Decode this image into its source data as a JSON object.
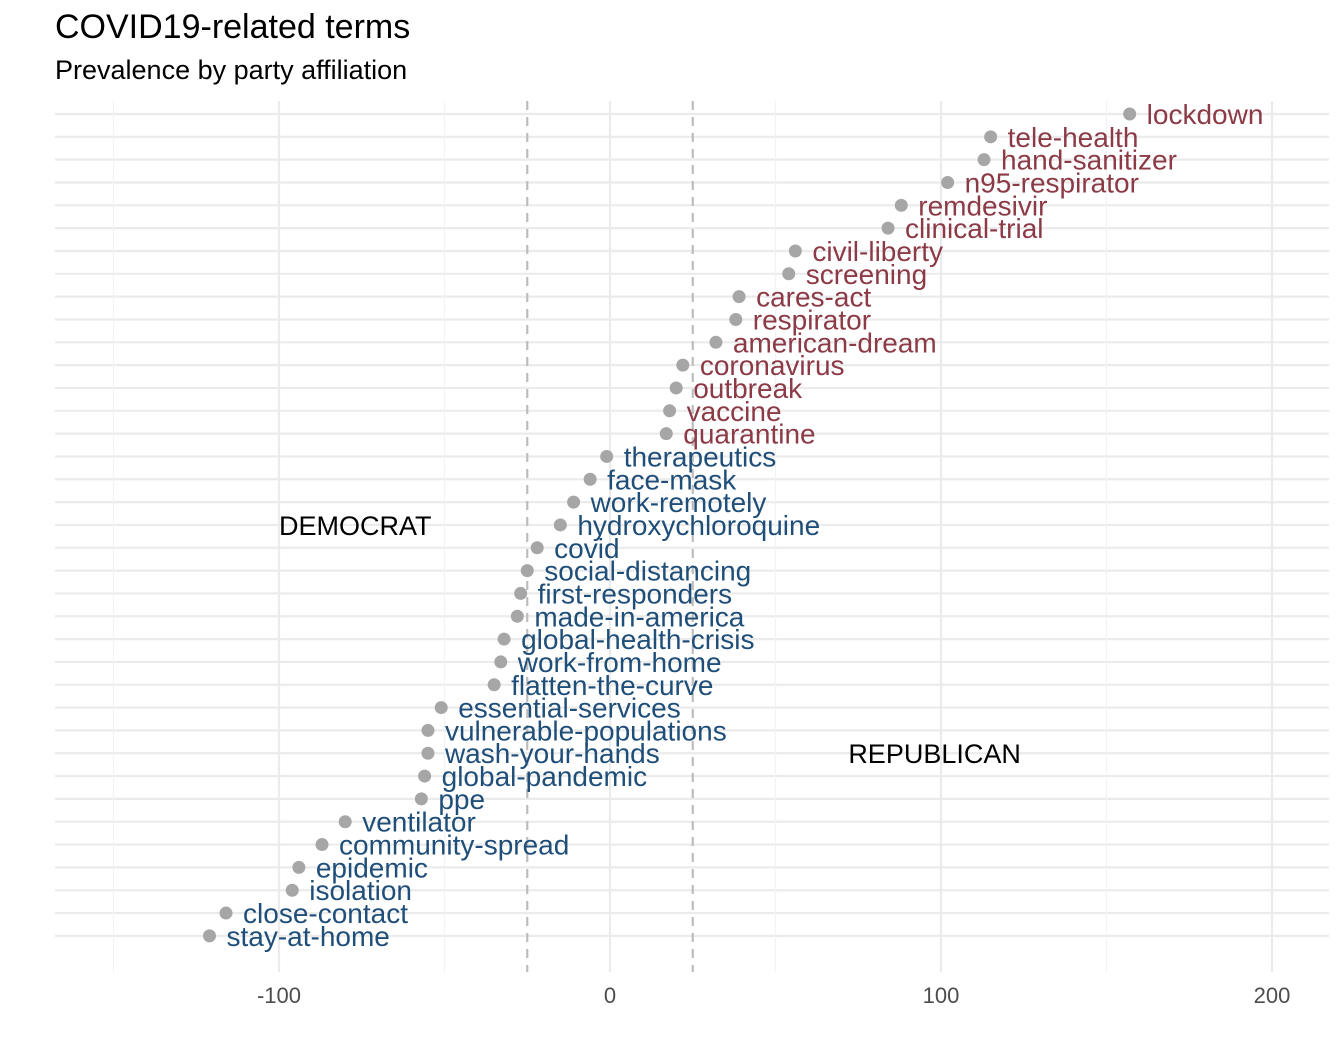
{
  "title": "COVID19-related terms",
  "subtitle": "Prevalence by party affiliation",
  "colors": {
    "republican": "#8B3A46",
    "democrat": "#1F4E79",
    "point": "#A6A6A6"
  },
  "chart_data": {
    "type": "scatter",
    "title": "COVID19-related terms",
    "subtitle": "Prevalence by party affiliation",
    "xlabel": "",
    "ylabel": "",
    "xlim": [
      -168,
      218
    ],
    "x_ticks": [
      -100,
      0,
      100,
      200
    ],
    "x_tick_labels": [
      "-100",
      "0",
      "100",
      "200"
    ],
    "reference_lines": [
      -25,
      25
    ],
    "grid": true,
    "annotations": [
      {
        "text": "DEMOCRAT",
        "x": -100,
        "term": "hydroxychloroquine"
      },
      {
        "text": "REPUBLICAN",
        "x": 72,
        "term": "wash-your-hands"
      }
    ],
    "points": [
      {
        "term": "lockdown",
        "value": 157,
        "party": "republican"
      },
      {
        "term": "tele-health",
        "value": 115,
        "party": "republican"
      },
      {
        "term": "hand-sanitizer",
        "value": 113,
        "party": "republican"
      },
      {
        "term": "n95-respirator",
        "value": 102,
        "party": "republican"
      },
      {
        "term": "remdesivir",
        "value": 88,
        "party": "republican"
      },
      {
        "term": "clinical-trial",
        "value": 84,
        "party": "republican"
      },
      {
        "term": "civil-liberty",
        "value": 56,
        "party": "republican"
      },
      {
        "term": "screening",
        "value": 54,
        "party": "republican"
      },
      {
        "term": "cares-act",
        "value": 39,
        "party": "republican"
      },
      {
        "term": "respirator",
        "value": 38,
        "party": "republican"
      },
      {
        "term": "american-dream",
        "value": 32,
        "party": "republican"
      },
      {
        "term": "coronavirus",
        "value": 22,
        "party": "republican"
      },
      {
        "term": "outbreak",
        "value": 20,
        "party": "republican"
      },
      {
        "term": "vaccine",
        "value": 18,
        "party": "republican"
      },
      {
        "term": "quarantine",
        "value": 17,
        "party": "republican"
      },
      {
        "term": "therapeutics",
        "value": -1,
        "party": "democrat"
      },
      {
        "term": "face-mask",
        "value": -6,
        "party": "democrat"
      },
      {
        "term": "work-remotely",
        "value": -11,
        "party": "democrat"
      },
      {
        "term": "hydroxychloroquine",
        "value": -15,
        "party": "democrat"
      },
      {
        "term": "covid",
        "value": -22,
        "party": "democrat"
      },
      {
        "term": "social-distancing",
        "value": -25,
        "party": "democrat"
      },
      {
        "term": "first-responders",
        "value": -27,
        "party": "democrat"
      },
      {
        "term": "made-in-america",
        "value": -28,
        "party": "democrat"
      },
      {
        "term": "global-health-crisis",
        "value": -32,
        "party": "democrat"
      },
      {
        "term": "work-from-home",
        "value": -33,
        "party": "democrat"
      },
      {
        "term": "flatten-the-curve",
        "value": -35,
        "party": "democrat"
      },
      {
        "term": "essential-services",
        "value": -51,
        "party": "democrat"
      },
      {
        "term": "vulnerable-populations",
        "value": -55,
        "party": "democrat"
      },
      {
        "term": "wash-your-hands",
        "value": -55,
        "party": "democrat"
      },
      {
        "term": "global-pandemic",
        "value": -56,
        "party": "democrat"
      },
      {
        "term": "ppe",
        "value": -57,
        "party": "democrat"
      },
      {
        "term": "ventilator",
        "value": -80,
        "party": "democrat"
      },
      {
        "term": "community-spread",
        "value": -87,
        "party": "democrat"
      },
      {
        "term": "epidemic",
        "value": -94,
        "party": "democrat"
      },
      {
        "term": "isolation",
        "value": -96,
        "party": "democrat"
      },
      {
        "term": "close-contact",
        "value": -116,
        "party": "democrat"
      },
      {
        "term": "stay-at-home",
        "value": -121,
        "party": "democrat"
      }
    ]
  }
}
